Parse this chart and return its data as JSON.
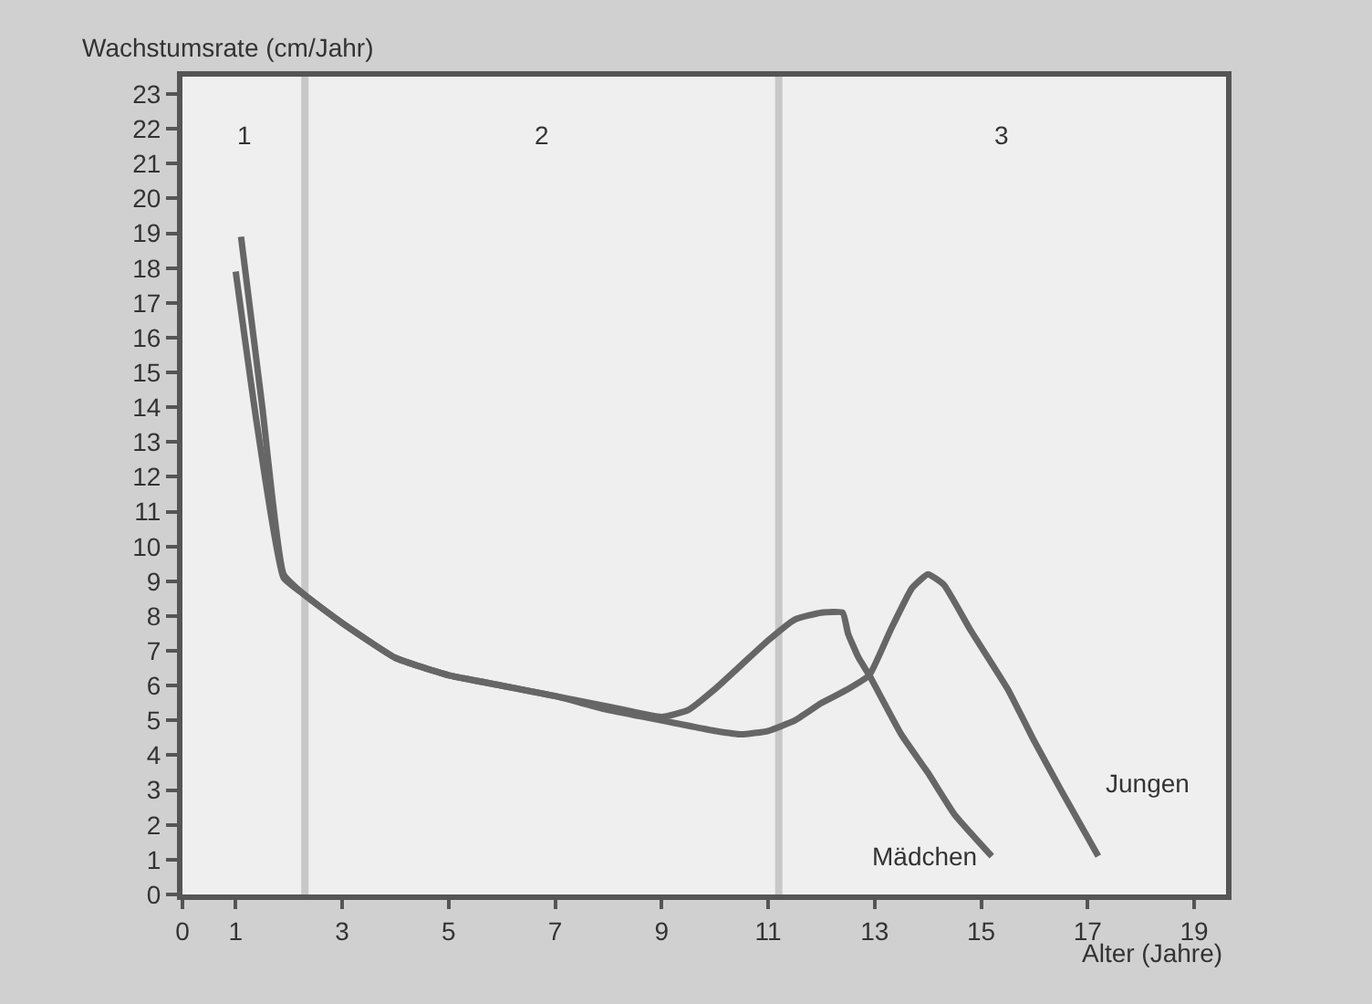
{
  "chart_data": {
    "type": "line",
    "ylabel": "Wachstumsrate (cm/Jahr)",
    "xlabel": "Alter (Jahre)",
    "xlim": [
      0,
      19.6
    ],
    "xticks": [
      0,
      1,
      3,
      5,
      7,
      9,
      11,
      13,
      15,
      17,
      19
    ],
    "ylim": [
      0,
      23.5
    ],
    "yticks": [
      0,
      1,
      2,
      3,
      4,
      5,
      6,
      7,
      8,
      9,
      10,
      11,
      12,
      13,
      14,
      15,
      16,
      17,
      18,
      19,
      20,
      21,
      22,
      23
    ],
    "grid": false,
    "legend": false,
    "marker": "none",
    "line_style": "solid",
    "ref_lines": [
      {
        "axis": "x",
        "value": 2.3,
        "label": null,
        "color": "#c8c8c8"
      },
      {
        "axis": "x",
        "value": 11.2,
        "label": null,
        "color": "#c8c8c8"
      }
    ],
    "annotations": [
      "1",
      "2",
      "3"
    ],
    "series": [
      {
        "name": "Mädchen",
        "color": "#666666",
        "x": [
          1.0,
          1.4,
          1.9,
          2.3,
          3,
          4,
          5,
          6,
          7,
          8,
          9,
          9.5,
          10,
          10.5,
          11,
          11.5,
          12.0,
          12.4,
          12.5,
          12.7,
          12.9,
          13.5,
          14,
          14.5,
          15.2
        ],
        "values": [
          17.9,
          13.5,
          9.1,
          8.6,
          7.8,
          6.8,
          6.3,
          6.0,
          5.7,
          5.4,
          5.1,
          5.3,
          5.9,
          6.6,
          7.3,
          7.9,
          8.1,
          8.1,
          7.5,
          6.8,
          6.3,
          4.6,
          3.5,
          2.3,
          1.1
        ]
      },
      {
        "name": "Jungen",
        "color": "#666666",
        "x": [
          1.1,
          1.5,
          1.9,
          2.3,
          3,
          4,
          5,
          6,
          7,
          8,
          9,
          10,
          10.5,
          11,
          11.5,
          12,
          12.5,
          12.9,
          13.3,
          13.7,
          14.0,
          14.3,
          14.8,
          15.5,
          16,
          16.5,
          17.2
        ],
        "values": [
          18.9,
          14,
          9.2,
          8.6,
          7.8,
          6.8,
          6.3,
          6.0,
          5.7,
          5.3,
          5.0,
          4.7,
          4.6,
          4.7,
          5.0,
          5.5,
          5.9,
          6.3,
          7.6,
          8.8,
          9.2,
          8.9,
          7.6,
          5.9,
          4.4,
          3.0,
          1.1
        ]
      }
    ]
  }
}
